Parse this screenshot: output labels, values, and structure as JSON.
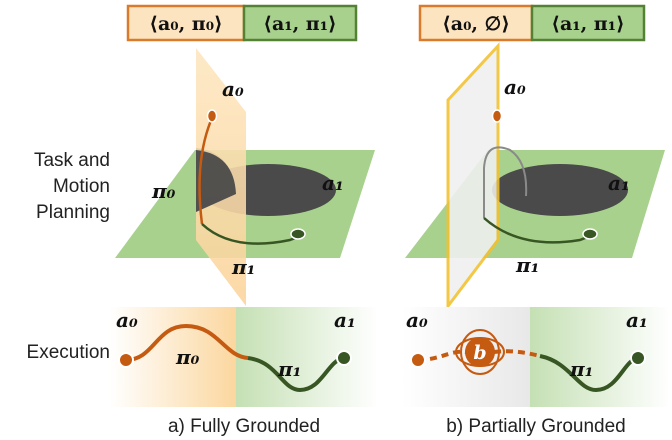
{
  "row_labels": {
    "tamp_line1": "Task and",
    "tamp_line2": "Motion",
    "tamp_line3": "Planning",
    "execution": "Execution"
  },
  "panel_a": {
    "tag_left": "⟨a₀, π₀⟩",
    "tag_right": "⟨a₁, π₁⟩",
    "a0": "a₀",
    "a1": "a₁",
    "pi0": "π₀",
    "pi1": "π₁",
    "exec_a0": "a₀",
    "exec_a1": "a₁",
    "exec_pi0": "π₀",
    "exec_pi1": "π₁",
    "caption": "a) Fully Grounded"
  },
  "panel_b": {
    "tag_left": "⟨a₀, ∅⟩",
    "tag_right": "⟨a₁, π₁⟩",
    "a0": "a₀",
    "a1": "a₁",
    "pi1": "π₁",
    "exec_a0": "a₀",
    "exec_a1": "a₁",
    "exec_b": "b",
    "exec_pi1": "π₁",
    "caption": "b) Partially Grounded"
  },
  "colors": {
    "orange_fill": "#fce4c0",
    "orange_border": "#d97b2a",
    "green_fill": "#a9d18e",
    "green_border": "#548235",
    "path_orange": "#c55a11",
    "path_green": "#375623",
    "shadow": "#4a4a4a",
    "yellow_border": "#f2c12e"
  }
}
